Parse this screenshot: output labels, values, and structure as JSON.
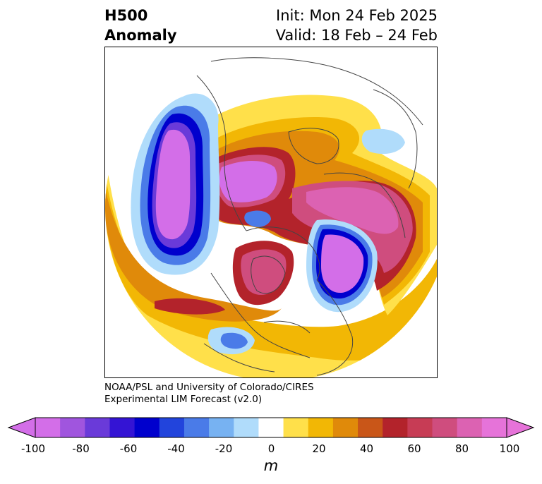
{
  "title": {
    "left_line1": "H500",
    "left_line2": "Anomaly",
    "right_line1": "Init: Mon 24 Feb 2025",
    "right_line2": "Valid: 18 Feb – 24 Feb"
  },
  "credit": {
    "line1": "NOAA/PSL and University of Colorado/CIRES",
    "line2": "Experimental LIM Forecast (v2.0)"
  },
  "colorbar": {
    "unit": "m",
    "tick_labels": [
      "-100",
      "-80",
      "-60",
      "-40",
      "-20",
      "0",
      "20",
      "40",
      "60",
      "80",
      "100"
    ],
    "colors": [
      "#d36ee8",
      "#a055de",
      "#6a3ad9",
      "#3414d4",
      "#0000cd",
      "#2244dc",
      "#4a7be8",
      "#77b2f2",
      "#b0dcfb",
      "#ffffff",
      "#ffe04a",
      "#f2b705",
      "#e08a0a",
      "#c95618",
      "#b3232b",
      "#c73c55",
      "#cf4d7e",
      "#dc62b2",
      "#e673d9"
    ],
    "under_color": "#d36ee8",
    "over_color": "#e673d9"
  },
  "map": {
    "projection": "north-polar-stereographic",
    "field": "500 hPa geopotential height anomaly"
  }
}
